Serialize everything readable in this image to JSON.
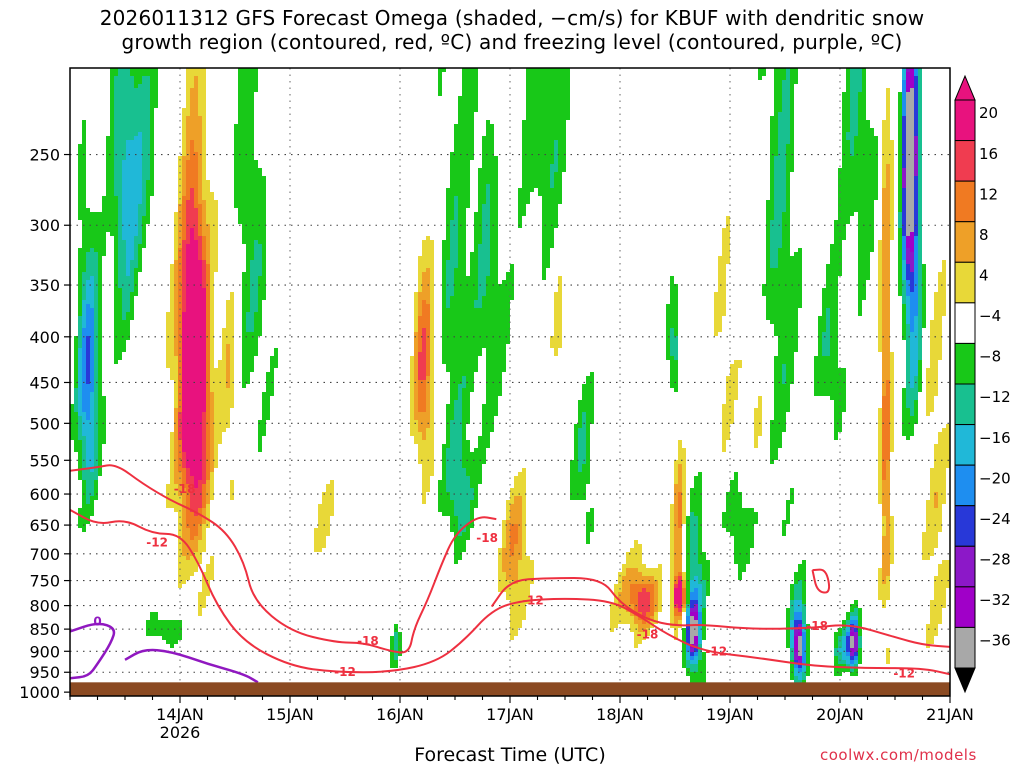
{
  "title": {
    "line1": "2026011312 GFS Forecast Omega (shaded, −cm/s) for KBUF with dendritic snow",
    "line2": "growth region (contoured, red, ºC) and freezing level (contoured, purple, ºC)"
  },
  "credit": "coolwx.com/models",
  "chart_data": {
    "type": "heatmap",
    "title": "2026011312 GFS Forecast Omega (shaded, −cm/s) for KBUF with dendritic snow growth region (contoured, red, ºC) and freezing level (contoured, purple, ºC)",
    "xlabel": "Forecast Time (UTC)",
    "ylabel": "",
    "x_range_hours": [
      -12,
      180
    ],
    "x_ticks": [
      {
        "label": "14JAN",
        "sub": "2026",
        "hour": 12
      },
      {
        "label": "15JAN",
        "sub": "",
        "hour": 36
      },
      {
        "label": "16JAN",
        "sub": "",
        "hour": 60
      },
      {
        "label": "17JAN",
        "sub": "",
        "hour": 84
      },
      {
        "label": "18JAN",
        "sub": "",
        "hour": 108
      },
      {
        "label": "19JAN",
        "sub": "",
        "hour": 132
      },
      {
        "label": "20JAN",
        "sub": "",
        "hour": 156
      },
      {
        "label": "21JAN",
        "sub": "",
        "hour": 180
      }
    ],
    "y_ticks": [
      "250",
      "300",
      "350",
      "400",
      "450",
      "500",
      "550",
      "600",
      "650",
      "700",
      "750",
      "800",
      "850",
      "900",
      "950",
      "1000"
    ],
    "y_range_hpa": [
      200,
      1000
    ],
    "colorbar": {
      "labels": [
        "20",
        "16",
        "12",
        "8",
        "4",
        "−4",
        "−8",
        "−12",
        "−16",
        "−20",
        "−24",
        "−28",
        "−32",
        "−36"
      ],
      "bins": [
        {
          "from": 20,
          "to": 24,
          "color": "#e8127e"
        },
        {
          "from": 16,
          "to": 20,
          "color": "#f03c50"
        },
        {
          "from": 12,
          "to": 16,
          "color": "#f07a22"
        },
        {
          "from": 8,
          "to": 12,
          "color": "#eea028"
        },
        {
          "from": 4,
          "to": 8,
          "color": "#e8d838"
        },
        {
          "from": -4,
          "to": 4,
          "color": "#ffffff"
        },
        {
          "from": -8,
          "to": -4,
          "color": "#18c818"
        },
        {
          "from": -12,
          "to": -8,
          "color": "#18c090"
        },
        {
          "from": -16,
          "to": -12,
          "color": "#20b8d8"
        },
        {
          "from": -20,
          "to": -16,
          "color": "#1e8ef0"
        },
        {
          "from": -24,
          "to": -20,
          "color": "#2838d8"
        },
        {
          "from": -28,
          "to": -24,
          "color": "#8c18c8"
        },
        {
          "from": -32,
          "to": -28,
          "color": "#a000c8"
        },
        {
          "from": -36,
          "to": -32,
          "color": "#a8a8a8"
        }
      ]
    },
    "omega_features": [
      {
        "hour": -8,
        "p": 450,
        "hw": 2.5,
        "hp": 150,
        "value": -20
      },
      {
        "hour": 0,
        "p": 280,
        "hw": 3,
        "hp": 120,
        "value": -12
      },
      {
        "hour": 4,
        "p": 250,
        "hw": 4,
        "hp": 80,
        "value": -8
      },
      {
        "hour": 9,
        "p": 850,
        "hw": 4,
        "hp": 35,
        "value": -8
      },
      {
        "hour": 15,
        "p": 480,
        "hw": 4,
        "hp": 230,
        "value": 20
      },
      {
        "hour": 15,
        "p": 420,
        "hw": 2.5,
        "hp": 130,
        "value": 22
      },
      {
        "hour": 23,
        "p": 430,
        "hw": 2,
        "hp": 150,
        "value": 8
      },
      {
        "hour": 28,
        "p": 300,
        "hw": 5,
        "hp": 200,
        "value": -8
      },
      {
        "hour": 32,
        "p": 250,
        "hw": 3,
        "hp": 90,
        "value": 5
      },
      {
        "hour": 44,
        "p": 650,
        "hw": 3,
        "hp": 80,
        "value": 5
      },
      {
        "hour": 59,
        "p": 890,
        "hw": 1,
        "hp": 50,
        "value": -10
      },
      {
        "hour": 65,
        "p": 440,
        "hw": 2.2,
        "hp": 120,
        "value": 14
      },
      {
        "hour": 67,
        "p": 400,
        "hw": 3,
        "hp": 170,
        "value": 6
      },
      {
        "hour": 71,
        "p": 380,
        "hw": 5,
        "hp": 220,
        "value": -8
      },
      {
        "hour": 73,
        "p": 600,
        "hw": 3,
        "hp": 80,
        "value": -10
      },
      {
        "hour": 80,
        "p": 310,
        "hw": 4,
        "hp": 200,
        "value": -8
      },
      {
        "hour": 82,
        "p": 200,
        "hw": 2.5,
        "hp": 100,
        "value": 8
      },
      {
        "hour": 85,
        "p": 700,
        "hw": 3,
        "hp": 130,
        "value": 12
      },
      {
        "hour": 92,
        "p": 240,
        "hw": 5,
        "hp": 90,
        "value": -8
      },
      {
        "hour": 95,
        "p": 400,
        "hw": 2,
        "hp": 100,
        "value": 5
      },
      {
        "hour": 100,
        "p": 550,
        "hw": 2.5,
        "hp": 120,
        "value": -8
      },
      {
        "hour": 113,
        "p": 790,
        "hw": 3,
        "hp": 50,
        "value": 14
      },
      {
        "hour": 111,
        "p": 780,
        "hw": 6,
        "hp": 90,
        "value": 7
      },
      {
        "hour": 121,
        "p": 680,
        "hw": 1.5,
        "hp": 180,
        "value": 14
      },
      {
        "hour": 121,
        "p": 780,
        "hw": 1.5,
        "hp": 40,
        "value": 20
      },
      {
        "hour": 124,
        "p": 860,
        "hw": 1.2,
        "hp": 60,
        "value": -24
      },
      {
        "hour": 124,
        "p": 800,
        "hw": 2.5,
        "hp": 180,
        "value": -16
      },
      {
        "hour": 120,
        "p": 420,
        "hw": 1.5,
        "hp": 60,
        "value": -12
      },
      {
        "hour": 131,
        "p": 420,
        "hw": 2.5,
        "hp": 130,
        "value": 5
      },
      {
        "hour": 134,
        "p": 650,
        "hw": 3,
        "hp": 80,
        "value": -8
      },
      {
        "hour": 138,
        "p": 460,
        "hw": 3,
        "hp": 100,
        "value": 5
      },
      {
        "hour": 143,
        "p": 300,
        "hw": 4,
        "hp": 300,
        "value": -8
      },
      {
        "hour": 147,
        "p": 890,
        "hw": 1.2,
        "hp": 55,
        "value": -26
      },
      {
        "hour": 147,
        "p": 860,
        "hw": 2,
        "hp": 120,
        "value": -14
      },
      {
        "hour": 154,
        "p": 420,
        "hw": 3,
        "hp": 90,
        "value": -8
      },
      {
        "hour": 157,
        "p": 890,
        "hw": 3,
        "hp": 55,
        "value": -12
      },
      {
        "hour": 159,
        "p": 880,
        "hw": 1.2,
        "hp": 60,
        "value": -26
      },
      {
        "hour": 160,
        "p": 230,
        "hw": 4,
        "hp": 120,
        "value": -8
      },
      {
        "hour": 166,
        "p": 480,
        "hw": 1.3,
        "hp": 330,
        "value": 14
      },
      {
        "hour": 171,
        "p": 250,
        "hw": 1.5,
        "hp": 90,
        "value": -28
      },
      {
        "hour": 172,
        "p": 320,
        "hw": 2,
        "hp": 180,
        "value": -18
      },
      {
        "hour": 177,
        "p": 620,
        "hw": 3,
        "hp": 350,
        "value": 6
      }
    ],
    "dgz_contours": [
      {
        "label": "-18",
        "points": [
          [
            -12,
            565
          ],
          [
            -6,
            560
          ],
          [
            -2,
            555
          ],
          [
            4,
            585
          ],
          [
            10,
            610
          ],
          [
            16,
            630
          ],
          [
            22,
            660
          ],
          [
            26,
            715
          ],
          [
            28,
            790
          ],
          [
            36,
            855
          ],
          [
            46,
            880
          ],
          [
            52,
            880
          ],
          [
            58,
            900
          ],
          [
            62,
            905
          ],
          [
            63,
            850
          ],
          [
            66,
            790
          ],
          [
            69,
            720
          ],
          [
            72,
            665
          ],
          [
            77,
            635
          ],
          [
            81,
            640
          ]
        ],
        "labels": [
          {
            "text": "-18",
            "hour": 13,
            "p": 592
          },
          {
            "text": "-18",
            "hour": 53,
            "p": 876
          },
          {
            "text": "-18",
            "hour": 79,
            "p": 672
          }
        ]
      },
      {
        "label": "-12",
        "points": [
          [
            -12,
            625
          ],
          [
            -6,
            650
          ],
          [
            0,
            640
          ],
          [
            6,
            665
          ],
          [
            12,
            665
          ],
          [
            16,
            715
          ],
          [
            20,
            800
          ],
          [
            26,
            880
          ],
          [
            36,
            935
          ],
          [
            46,
            950
          ],
          [
            58,
            950
          ],
          [
            68,
            925
          ],
          [
            74,
            875
          ],
          [
            80,
            810
          ],
          [
            86,
            790
          ],
          [
            96,
            785
          ],
          [
            106,
            790
          ],
          [
            112,
            820
          ],
          [
            118,
            860
          ],
          [
            126,
            900
          ],
          [
            138,
            915
          ],
          [
            150,
            935
          ],
          [
            162,
            940
          ],
          [
            174,
            940
          ],
          [
            180,
            955
          ]
        ],
        "labels": [
          {
            "text": "-12",
            "hour": 7,
            "p": 680
          },
          {
            "text": "-12",
            "hour": 48,
            "p": 950
          },
          {
            "text": "-12",
            "hour": 89,
            "p": 790
          },
          {
            "text": "-12",
            "hour": 129,
            "p": 900
          },
          {
            "text": "-12",
            "hour": 170,
            "p": 953
          }
        ]
      },
      {
        "label": "-18",
        "points": [
          [
            80,
            802
          ],
          [
            84,
            750
          ],
          [
            92,
            745
          ],
          [
            104,
            745
          ],
          [
            108,
            795
          ],
          [
            114,
            830
          ],
          [
            120,
            843
          ],
          [
            126,
            840
          ],
          [
            136,
            850
          ],
          [
            150,
            848
          ],
          [
            158,
            838
          ],
          [
            168,
            868
          ],
          [
            174,
            885
          ],
          [
            180,
            890
          ]
        ],
        "labels": [
          {
            "text": "-18",
            "hour": 114,
            "p": 862
          },
          {
            "text": "-18",
            "hour": 151,
            "p": 843
          }
        ]
      },
      {
        "label": "-18",
        "points": [
          [
            150,
            730
          ],
          [
            153,
            728
          ],
          [
            154,
            775
          ],
          [
            151,
            772
          ],
          [
            150,
            730
          ]
        ],
        "labels": []
      }
    ],
    "freezing_contours": [
      {
        "label": "0",
        "points": [
          [
            -12,
            855
          ],
          [
            -6,
            835
          ],
          [
            -2,
            848
          ],
          [
            -3,
            880
          ],
          [
            -6,
            930
          ],
          [
            -8,
            960
          ],
          [
            -12,
            965
          ]
        ],
        "labels": [
          {
            "text": "0",
            "hour": -6,
            "p": 833
          }
        ]
      },
      {
        "label": "0",
        "points": [
          [
            0,
            920
          ],
          [
            4,
            895
          ],
          [
            10,
            900
          ],
          [
            18,
            930
          ],
          [
            26,
            955
          ],
          [
            29,
            975
          ]
        ],
        "labels": []
      }
    ],
    "ground_level_hpa": 975
  }
}
